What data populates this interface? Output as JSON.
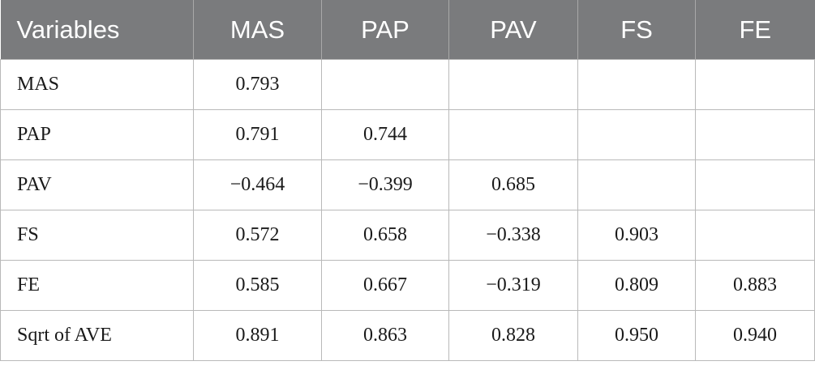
{
  "table": {
    "headers": [
      "Variables",
      "MAS",
      "PAP",
      "PAV",
      "FS",
      "FE"
    ],
    "rows": [
      {
        "label": "MAS",
        "cells": [
          "0.793",
          "",
          "",
          "",
          ""
        ]
      },
      {
        "label": "PAP",
        "cells": [
          "0.791",
          "0.744",
          "",
          "",
          ""
        ]
      },
      {
        "label": "PAV",
        "cells": [
          "−0.464",
          "−0.399",
          "0.685",
          "",
          ""
        ]
      },
      {
        "label": "FS",
        "cells": [
          "0.572",
          "0.658",
          "−0.338",
          "0.903",
          ""
        ]
      },
      {
        "label": "FE",
        "cells": [
          "0.585",
          "0.667",
          "−0.319",
          "0.809",
          "0.883"
        ]
      },
      {
        "label": "Sqrt of AVE",
        "cells": [
          "0.891",
          "0.863",
          "0.828",
          "0.950",
          "0.940"
        ]
      }
    ]
  },
  "colors": {
    "header_bg": "#7a7b7d",
    "header_text": "#ffffff",
    "grid_line": "#b9b9b9"
  }
}
